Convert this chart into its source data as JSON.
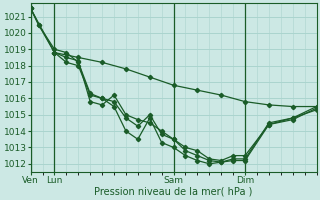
{
  "background_color": "#cce8e4",
  "grid_color": "#aad4ce",
  "line_color": "#1a5c28",
  "xlabel": "Pression niveau de la mer( hPa )",
  "ylim": [
    1011.5,
    1021.8
  ],
  "yticks": [
    1012,
    1013,
    1014,
    1015,
    1016,
    1017,
    1018,
    1019,
    1020,
    1021
  ],
  "xtick_labels": [
    "Ven",
    "Lun",
    "Sam",
    "Dim"
  ],
  "xtick_positions": [
    0,
    12,
    72,
    108
  ],
  "vline_positions": [
    0,
    12,
    72,
    108
  ],
  "total_hours": 144,
  "series_straight": {
    "x": [
      0,
      12,
      24,
      36,
      48,
      60,
      72,
      84,
      96,
      108,
      120,
      132,
      144
    ],
    "y": [
      1021.5,
      1018.8,
      1018.5,
      1018.2,
      1017.8,
      1017.3,
      1016.8,
      1016.5,
      1016.2,
      1015.8,
      1015.6,
      1015.5,
      1015.5
    ]
  },
  "series_main": {
    "x": [
      0,
      4,
      12,
      18,
      24,
      30,
      36,
      42,
      48,
      54,
      60,
      66,
      72,
      78,
      84,
      90,
      96,
      102,
      108,
      120,
      132,
      144
    ],
    "y": [
      1021.5,
      1020.5,
      1019.0,
      1018.8,
      1018.2,
      1016.3,
      1016.0,
      1015.8,
      1014.8,
      1014.3,
      1015.0,
      1013.8,
      1013.5,
      1013.0,
      1012.8,
      1012.3,
      1012.2,
      1012.5,
      1012.5,
      1014.4,
      1014.8,
      1015.3
    ]
  },
  "series_lower": {
    "x": [
      12,
      18,
      24,
      30,
      36,
      42,
      48,
      54,
      60,
      66,
      72,
      78,
      84,
      90,
      96,
      102,
      108,
      120,
      132,
      144
    ],
    "y": [
      1018.8,
      1018.2,
      1018.0,
      1016.2,
      1016.0,
      1015.5,
      1014.0,
      1013.5,
      1014.8,
      1013.3,
      1013.0,
      1012.5,
      1012.2,
      1012.0,
      1012.1,
      1012.3,
      1012.3,
      1014.5,
      1014.8,
      1015.5
    ]
  },
  "series_mid": {
    "x": [
      0,
      4,
      12,
      18,
      24,
      30,
      36,
      42,
      48,
      54,
      60,
      66,
      72,
      78,
      84,
      90,
      96,
      102,
      108,
      120,
      132,
      144
    ],
    "y": [
      1021.5,
      1020.5,
      1018.8,
      1018.5,
      1018.3,
      1015.8,
      1015.6,
      1016.2,
      1015.0,
      1014.7,
      1014.5,
      1014.0,
      1013.5,
      1012.8,
      1012.5,
      1012.2,
      1012.1,
      1012.2,
      1012.2,
      1014.4,
      1014.7,
      1015.4
    ]
  }
}
